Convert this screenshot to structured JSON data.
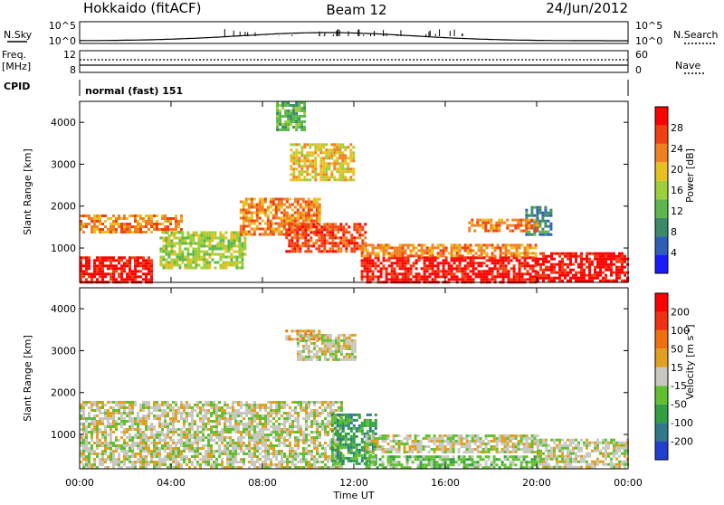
{
  "header": {
    "station": "Hokkaido (fitACF)",
    "beam": "Beam 12",
    "date": "24/Jun/2012"
  },
  "top_panels": {
    "nsky_label": "N.Sky",
    "nsearch_label": "N.Search",
    "freq_label_1": "Freq.",
    "freq_label_2": "[MHz]",
    "nave_label": "Nave",
    "cpid_label": "CPID",
    "nsky_ticks": [
      "10^5",
      "10^0"
    ],
    "nsearch_ticks": [
      "10^5",
      "10^0"
    ],
    "freq_ticks": [
      "12",
      "8"
    ],
    "nave_ticks": [
      "60",
      "0"
    ],
    "cpid_text": "normal (fast) 151"
  },
  "chart_data": [
    {
      "type": "heatmap",
      "name": "power",
      "ylabel": "Slant Range [km]",
      "ylim": [
        180,
        4500
      ],
      "yticks": [
        "4000",
        "3000",
        "2000",
        "1000"
      ],
      "xlim_hours": [
        0,
        24
      ],
      "xticks": [
        "00:00",
        "04:00",
        "08:00",
        "12:00",
        "16:00",
        "20:00",
        "00:00"
      ],
      "colorbar_label": "Power [dB]",
      "colorbar_ticks": [
        "28",
        "24",
        "20",
        "16",
        "12",
        "8",
        "4"
      ],
      "colors": [
        "#1a1aff",
        "#2e5fb8",
        "#3d8a6a",
        "#5cb84a",
        "#9ecf3c",
        "#e8c020",
        "#f08020",
        "#f04010",
        "#ff0000"
      ],
      "regions": [
        {
          "t": [
            0.0,
            3.2
          ],
          "r": [
            180,
            800
          ],
          "level": 8
        },
        {
          "t": [
            0.0,
            4.5
          ],
          "r": [
            1400,
            1800
          ],
          "level": 6
        },
        {
          "t": [
            3.5,
            7.2
          ],
          "r": [
            500,
            1400
          ],
          "level": 4
        },
        {
          "t": [
            7.0,
            10.5
          ],
          "r": [
            1300,
            2200
          ],
          "level": 6
        },
        {
          "t": [
            9.0,
            12.5
          ],
          "r": [
            900,
            1600
          ],
          "level": 7
        },
        {
          "t": [
            12.3,
            20.0
          ],
          "r": [
            200,
            800
          ],
          "level": 8
        },
        {
          "t": [
            12.3,
            20.0
          ],
          "r": [
            800,
            1100
          ],
          "level": 6
        },
        {
          "t": [
            20.0,
            24.0
          ],
          "r": [
            200,
            900
          ],
          "level": 8
        },
        {
          "t": [
            9.2,
            12.0
          ],
          "r": [
            2600,
            3500
          ],
          "level": 5
        },
        {
          "t": [
            8.6,
            9.8
          ],
          "r": [
            3800,
            4500
          ],
          "level": 3
        },
        {
          "t": [
            19.5,
            20.6
          ],
          "r": [
            1300,
            2000
          ],
          "level": 2
        },
        {
          "t": [
            17.0,
            20.0
          ],
          "r": [
            1400,
            1700
          ],
          "level": 6
        }
      ]
    },
    {
      "type": "heatmap",
      "name": "velocity",
      "ylabel": "Slant Range [km]",
      "ylim": [
        180,
        4500
      ],
      "yticks": [
        "4000",
        "3000",
        "2000",
        "1000"
      ],
      "xlim_hours": [
        0,
        24
      ],
      "xticks": [
        "00:00",
        "04:00",
        "08:00",
        "12:00",
        "16:00",
        "20:00",
        "00:00"
      ],
      "xlabel": "Time UT",
      "colorbar_label": "Velocity [m s^-1]",
      "colorbar_ticks": [
        "200",
        "100",
        "50",
        "15",
        "-15",
        "-50",
        "-100",
        "-200"
      ],
      "colors": [
        "#2040d0",
        "#2f7a8a",
        "#30a040",
        "#60c030",
        "#c8c8c0",
        "#e0a020",
        "#f07010",
        "#f03010",
        "#ff0000"
      ],
      "regions": [
        {
          "t": [
            0.0,
            11.5
          ],
          "r": [
            200,
            1800
          ],
          "level": 4
        },
        {
          "t": [
            11.0,
            13.0
          ],
          "r": [
            300,
            1500
          ],
          "level": 2
        },
        {
          "t": [
            12.5,
            20.0
          ],
          "r": [
            180,
            500
          ],
          "level": 3
        },
        {
          "t": [
            12.5,
            20.0
          ],
          "r": [
            600,
            1000
          ],
          "level": 4
        },
        {
          "t": [
            20.0,
            24.0
          ],
          "r": [
            200,
            900
          ],
          "level": 4
        },
        {
          "t": [
            9.5,
            12.0
          ],
          "r": [
            2800,
            3400
          ],
          "level": 4
        },
        {
          "t": [
            9.0,
            10.5
          ],
          "r": [
            3300,
            3500
          ],
          "level": 5
        }
      ]
    }
  ]
}
